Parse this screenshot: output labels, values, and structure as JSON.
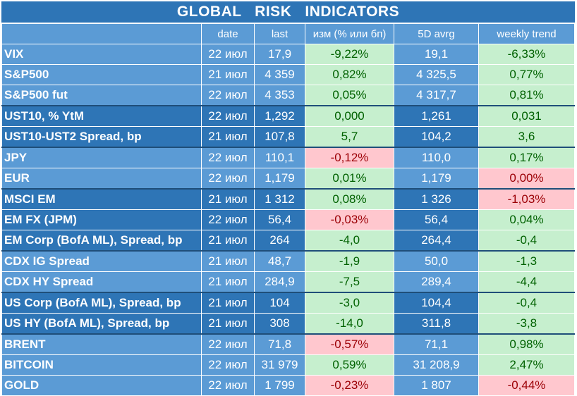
{
  "title": "GLOBAL   RISK   INDICATORS",
  "headers": [
    "",
    "date",
    "last",
    "изм (% или бп)",
    "5D avrg",
    "weekly trend"
  ],
  "rows": [
    {
      "name": "VIX",
      "date": "22 июл",
      "last": "17,9",
      "chg": "-9,22%",
      "chg_tone": "pos",
      "avg": "19,1",
      "trend": "-6,33%",
      "trend_tone": "pos",
      "shade": "light"
    },
    {
      "name": "S&P500",
      "date": "21 июл",
      "last": "4 359",
      "chg": "0,82%",
      "chg_tone": "pos",
      "avg": "4 325,5",
      "trend": "0,77%",
      "trend_tone": "pos",
      "shade": "light"
    },
    {
      "name": "S&P500 fut",
      "date": "22 июл",
      "last": "4 353",
      "chg": "0,05%",
      "chg_tone": "pos",
      "avg": "4 317,7",
      "trend": "0,81%",
      "trend_tone": "pos",
      "shade": "light",
      "end": true
    },
    {
      "name": "UST10, % YtM",
      "date": "22 июл",
      "last": "1,292",
      "chg": "0,000",
      "chg_tone": "pos",
      "avg": "1,261",
      "trend": "0,031",
      "trend_tone": "pos",
      "shade": "dark"
    },
    {
      "name": "UST10-UST2 Spread, bp",
      "date": "21 июл",
      "last": "107,8",
      "chg": "5,7",
      "chg_tone": "pos",
      "avg": "104,2",
      "trend": "3,6",
      "trend_tone": "pos",
      "shade": "dark",
      "end": true
    },
    {
      "name": "JPY",
      "date": "22 июл",
      "last": "110,1",
      "chg": "-0,12%",
      "chg_tone": "neg",
      "avg": "110,0",
      "trend": "0,17%",
      "trend_tone": "pos",
      "shade": "light"
    },
    {
      "name": "EUR",
      "date": "22 июл",
      "last": "1,179",
      "chg": "0,01%",
      "chg_tone": "pos",
      "avg": "1,179",
      "trend": "0,00%",
      "trend_tone": "neg",
      "shade": "light",
      "end": true
    },
    {
      "name": "MSCI EM",
      "date": "21 июл",
      "last": "1 312",
      "chg": "0,08%",
      "chg_tone": "pos",
      "avg": "1 326",
      "trend": "-1,03%",
      "trend_tone": "neg",
      "shade": "dark"
    },
    {
      "name": "EM FX (JPM)",
      "date": "22 июл",
      "last": "56,4",
      "chg": "-0,03%",
      "chg_tone": "neg",
      "avg": "56,4",
      "trend": "0,04%",
      "trend_tone": "pos",
      "shade": "dark"
    },
    {
      "name": "EM Corp (BofA ML), Spread, bp",
      "date": "21 июл",
      "last": "264",
      "chg": "-4,0",
      "chg_tone": "pos",
      "avg": "264,4",
      "trend": "-0,4",
      "trend_tone": "pos",
      "shade": "dark",
      "end": true
    },
    {
      "name": "CDX IG Spread",
      "date": "21 июл",
      "last": "48,7",
      "chg": "-1,9",
      "chg_tone": "pos",
      "avg": "50,0",
      "trend": "-1,3",
      "trend_tone": "pos",
      "shade": "light"
    },
    {
      "name": "CDX HY Spread",
      "date": "21 июл",
      "last": "284,9",
      "chg": "-7,5",
      "chg_tone": "pos",
      "avg": "289,4",
      "trend": "-4,4",
      "trend_tone": "pos",
      "shade": "light",
      "end": true
    },
    {
      "name": "US Corp (BofA ML), Spread, bp",
      "date": "21 июл",
      "last": "104",
      "chg": "-3,0",
      "chg_tone": "pos",
      "avg": "104,4",
      "trend": "-0,4",
      "trend_tone": "pos",
      "shade": "dark"
    },
    {
      "name": "US HY (BofA ML), Spread, bp",
      "date": "21 июл",
      "last": "308",
      "chg": "-14,0",
      "chg_tone": "pos",
      "avg": "311,8",
      "trend": "-3,8",
      "trend_tone": "pos",
      "shade": "dark",
      "end": true
    },
    {
      "name": "BRENT",
      "date": "22 июл",
      "last": "71,8",
      "chg": "-0,57%",
      "chg_tone": "neg",
      "avg": "71,1",
      "trend": "0,98%",
      "trend_tone": "pos",
      "shade": "light"
    },
    {
      "name": "BITCOIN",
      "date": "22 июл",
      "last": "31 979",
      "chg": "0,59%",
      "chg_tone": "pos",
      "avg": "31 208,9",
      "trend": "2,47%",
      "trend_tone": "pos",
      "shade": "light"
    },
    {
      "name": "GOLD",
      "date": "22 июл",
      "last": "1 799",
      "chg": "-0,23%",
      "chg_tone": "neg",
      "avg": "1 807",
      "trend": "-0,44%",
      "trend_tone": "neg",
      "shade": "light"
    }
  ],
  "colors": {
    "dark_blue": "#2e75b6",
    "light_blue": "#5b9bd5",
    "green_fill": "#c6efce",
    "green_text": "#006100",
    "red_fill": "#ffc7ce",
    "red_text": "#9c0006"
  }
}
